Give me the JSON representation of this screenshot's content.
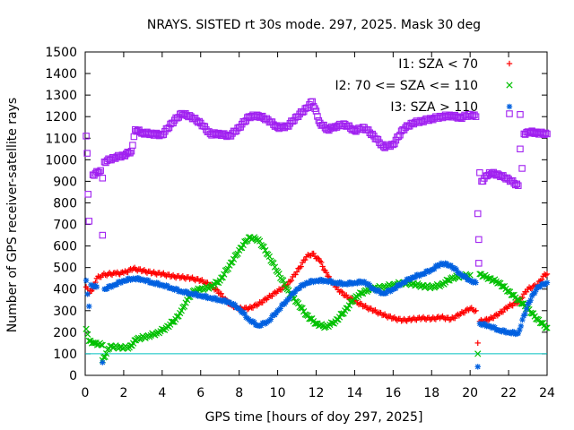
{
  "chart_data": {
    "type": "scatter",
    "title": "NRAYS. SISTED rt 30s mode. 297, 2025. Mask 30 deg",
    "xlabel": "GPS time [hours of doy 297, 2025]",
    "ylabel": "Number of GPS receiver-satellite rays",
    "xlim": [
      0,
      24
    ],
    "ylim": [
      0,
      1500
    ],
    "xticks": [
      "0",
      "2",
      "4",
      "6",
      "8",
      "10",
      "12",
      "14",
      "16",
      "18",
      "20",
      "22",
      "24"
    ],
    "yticks": [
      "0",
      "100",
      "200",
      "300",
      "400",
      "500",
      "600",
      "700",
      "800",
      "900",
      "1000",
      "1100",
      "1200",
      "1300",
      "1400",
      "1500"
    ],
    "reference_line": {
      "y": 100,
      "color": "#00c0c0"
    },
    "legend_position": "top-right",
    "series": [
      {
        "name": "I1: SZA < 70",
        "marker": "+",
        "color": "#ff0000",
        "points": [
          [
            0.05,
            410
          ],
          [
            0.2,
            380
          ],
          [
            0.4,
            400
          ],
          [
            0.6,
            450
          ],
          [
            0.9,
            465
          ],
          [
            1.2,
            470
          ],
          [
            1.6,
            472
          ],
          [
            2.0,
            475
          ],
          [
            2.5,
            495
          ],
          [
            3.0,
            485
          ],
          [
            3.5,
            475
          ],
          [
            4.0,
            470
          ],
          [
            4.5,
            460
          ],
          [
            5.0,
            455
          ],
          [
            5.5,
            450
          ],
          [
            6.0,
            440
          ],
          [
            6.5,
            420
          ],
          [
            7.0,
            380
          ],
          [
            7.5,
            330
          ],
          [
            8.0,
            310
          ],
          [
            8.5,
            310
          ],
          [
            9.0,
            330
          ],
          [
            9.5,
            360
          ],
          [
            10.0,
            390
          ],
          [
            10.5,
            420
          ],
          [
            11.0,
            480
          ],
          [
            11.5,
            550
          ],
          [
            11.8,
            565
          ],
          [
            12.2,
            530
          ],
          [
            12.6,
            460
          ],
          [
            13.0,
            410
          ],
          [
            13.5,
            370
          ],
          [
            14.0,
            345
          ],
          [
            14.5,
            320
          ],
          [
            15.0,
            300
          ],
          [
            15.5,
            280
          ],
          [
            16.0,
            265
          ],
          [
            16.5,
            255
          ],
          [
            17.0,
            260
          ],
          [
            17.5,
            265
          ],
          [
            18.0,
            262
          ],
          [
            18.5,
            270
          ],
          [
            19.0,
            260
          ],
          [
            19.5,
            285
          ],
          [
            20.0,
            310
          ],
          [
            20.3,
            300
          ],
          [
            20.4,
            150
          ],
          [
            20.5,
            250
          ],
          [
            21.0,
            260
          ],
          [
            21.5,
            285
          ],
          [
            22.0,
            320
          ],
          [
            22.5,
            340
          ],
          [
            23.0,
            400
          ],
          [
            23.5,
            420
          ],
          [
            23.8,
            460
          ],
          [
            24.0,
            470
          ]
        ]
      },
      {
        "name": "I2: 70 <= SZA <= 110",
        "marker": "x",
        "color": "#00c000",
        "points": [
          [
            0.05,
            215
          ],
          [
            0.2,
            160
          ],
          [
            0.5,
            150
          ],
          [
            0.9,
            140
          ],
          [
            1.3,
            135
          ],
          [
            1.8,
            130
          ],
          [
            2.3,
            130
          ],
          [
            2.7,
            170
          ],
          [
            3.2,
            180
          ],
          [
            3.7,
            195
          ],
          [
            4.2,
            220
          ],
          [
            4.7,
            260
          ],
          [
            5.0,
            300
          ],
          [
            5.3,
            350
          ],
          [
            5.6,
            390
          ],
          [
            6.0,
            400
          ],
          [
            6.5,
            410
          ],
          [
            7.0,
            440
          ],
          [
            7.5,
            510
          ],
          [
            8.0,
            580
          ],
          [
            8.5,
            640
          ],
          [
            9.0,
            630
          ],
          [
            9.5,
            560
          ],
          [
            10.0,
            480
          ],
          [
            10.5,
            400
          ],
          [
            11.0,
            340
          ],
          [
            11.5,
            280
          ],
          [
            12.0,
            240
          ],
          [
            12.5,
            225
          ],
          [
            13.0,
            250
          ],
          [
            13.5,
            300
          ],
          [
            14.0,
            360
          ],
          [
            14.5,
            390
          ],
          [
            15.0,
            405
          ],
          [
            15.5,
            410
          ],
          [
            16.0,
            420
          ],
          [
            16.5,
            430
          ],
          [
            17.0,
            425
          ],
          [
            17.5,
            415
          ],
          [
            18.0,
            410
          ],
          [
            18.5,
            420
          ],
          [
            19.0,
            450
          ],
          [
            19.5,
            460
          ],
          [
            20.0,
            465
          ],
          [
            20.5,
            470
          ],
          [
            21.0,
            450
          ],
          [
            21.5,
            430
          ],
          [
            22.0,
            390
          ],
          [
            22.5,
            350
          ],
          [
            23.0,
            310
          ],
          [
            23.5,
            260
          ],
          [
            24.0,
            220
          ],
          [
            0.9,
            70
          ],
          [
            20.4,
            100
          ]
        ]
      },
      {
        "name": "I3: SZA > 110",
        "marker": "*",
        "color": "#0060e0",
        "points": [
          [
            0.05,
            440
          ],
          [
            0.3,
            420
          ],
          [
            0.6,
            410
          ],
          [
            1.0,
            400
          ],
          [
            1.5,
            420
          ],
          [
            2.0,
            440
          ],
          [
            2.5,
            450
          ],
          [
            3.0,
            445
          ],
          [
            3.5,
            430
          ],
          [
            4.0,
            420
          ],
          [
            4.5,
            405
          ],
          [
            5.0,
            390
          ],
          [
            5.5,
            380
          ],
          [
            6.0,
            370
          ],
          [
            6.5,
            360
          ],
          [
            7.0,
            350
          ],
          [
            7.5,
            340
          ],
          [
            8.0,
            310
          ],
          [
            8.5,
            260
          ],
          [
            9.0,
            230
          ],
          [
            9.5,
            250
          ],
          [
            10.0,
            300
          ],
          [
            10.5,
            350
          ],
          [
            11.0,
            400
          ],
          [
            11.5,
            430
          ],
          [
            12.0,
            440
          ],
          [
            12.5,
            440
          ],
          [
            13.0,
            430
          ],
          [
            13.5,
            425
          ],
          [
            14.0,
            430
          ],
          [
            14.5,
            435
          ],
          [
            15.0,
            400
          ],
          [
            15.5,
            380
          ],
          [
            16.0,
            400
          ],
          [
            16.5,
            430
          ],
          [
            17.0,
            455
          ],
          [
            17.5,
            470
          ],
          [
            18.0,
            490
          ],
          [
            18.5,
            520
          ],
          [
            19.0,
            510
          ],
          [
            19.5,
            470
          ],
          [
            20.0,
            440
          ],
          [
            20.3,
            430
          ],
          [
            20.4,
            40
          ],
          [
            20.5,
            240
          ],
          [
            21.0,
            230
          ],
          [
            21.5,
            210
          ],
          [
            22.0,
            200
          ],
          [
            22.5,
            195
          ],
          [
            23.0,
            330
          ],
          [
            23.5,
            410
          ],
          [
            24.0,
            430
          ],
          [
            0.2,
            320
          ],
          [
            0.9,
            60
          ]
        ]
      },
      {
        "name": "",
        "marker": "square",
        "color": "#a020f0",
        "points": [
          [
            0.05,
            1110
          ],
          [
            0.1,
            1030
          ],
          [
            0.15,
            840
          ],
          [
            0.2,
            715
          ],
          [
            0.4,
            930
          ],
          [
            0.8,
            950
          ],
          [
            1.0,
            990
          ],
          [
            1.5,
            1010
          ],
          [
            2.0,
            1020
          ],
          [
            2.4,
            1040
          ],
          [
            2.6,
            1140
          ],
          [
            3.0,
            1125
          ],
          [
            3.5,
            1120
          ],
          [
            4.0,
            1115
          ],
          [
            4.5,
            1170
          ],
          [
            5.0,
            1215
          ],
          [
            5.5,
            1200
          ],
          [
            6.0,
            1170
          ],
          [
            6.5,
            1120
          ],
          [
            7.0,
            1120
          ],
          [
            7.5,
            1110
          ],
          [
            8.0,
            1150
          ],
          [
            8.5,
            1200
          ],
          [
            9.0,
            1205
          ],
          [
            9.5,
            1185
          ],
          [
            10.0,
            1150
          ],
          [
            10.5,
            1155
          ],
          [
            11.0,
            1200
          ],
          [
            11.5,
            1240
          ],
          [
            11.8,
            1270
          ],
          [
            12.2,
            1170
          ],
          [
            12.6,
            1140
          ],
          [
            13.0,
            1155
          ],
          [
            13.5,
            1165
          ],
          [
            14.0,
            1135
          ],
          [
            14.5,
            1150
          ],
          [
            15.0,
            1110
          ],
          [
            15.5,
            1060
          ],
          [
            16.0,
            1070
          ],
          [
            16.5,
            1140
          ],
          [
            17.0,
            1170
          ],
          [
            17.5,
            1180
          ],
          [
            18.0,
            1190
          ],
          [
            18.5,
            1200
          ],
          [
            19.0,
            1205
          ],
          [
            19.5,
            1195
          ],
          [
            20.0,
            1210
          ],
          [
            20.3,
            1200
          ],
          [
            20.4,
            750
          ],
          [
            20.5,
            940
          ],
          [
            20.6,
            900
          ],
          [
            21.0,
            940
          ],
          [
            21.5,
            930
          ],
          [
            22.0,
            910
          ],
          [
            22.5,
            880
          ],
          [
            22.6,
            1050
          ],
          [
            22.8,
            1120
          ],
          [
            23.0,
            1130
          ],
          [
            23.5,
            1125
          ],
          [
            24.0,
            1120
          ],
          [
            0.9,
            650
          ],
          [
            0.9,
            915
          ],
          [
            20.45,
            630
          ],
          [
            20.45,
            520
          ],
          [
            22.7,
            960
          ],
          [
            22.6,
            1210
          ]
        ]
      }
    ]
  }
}
